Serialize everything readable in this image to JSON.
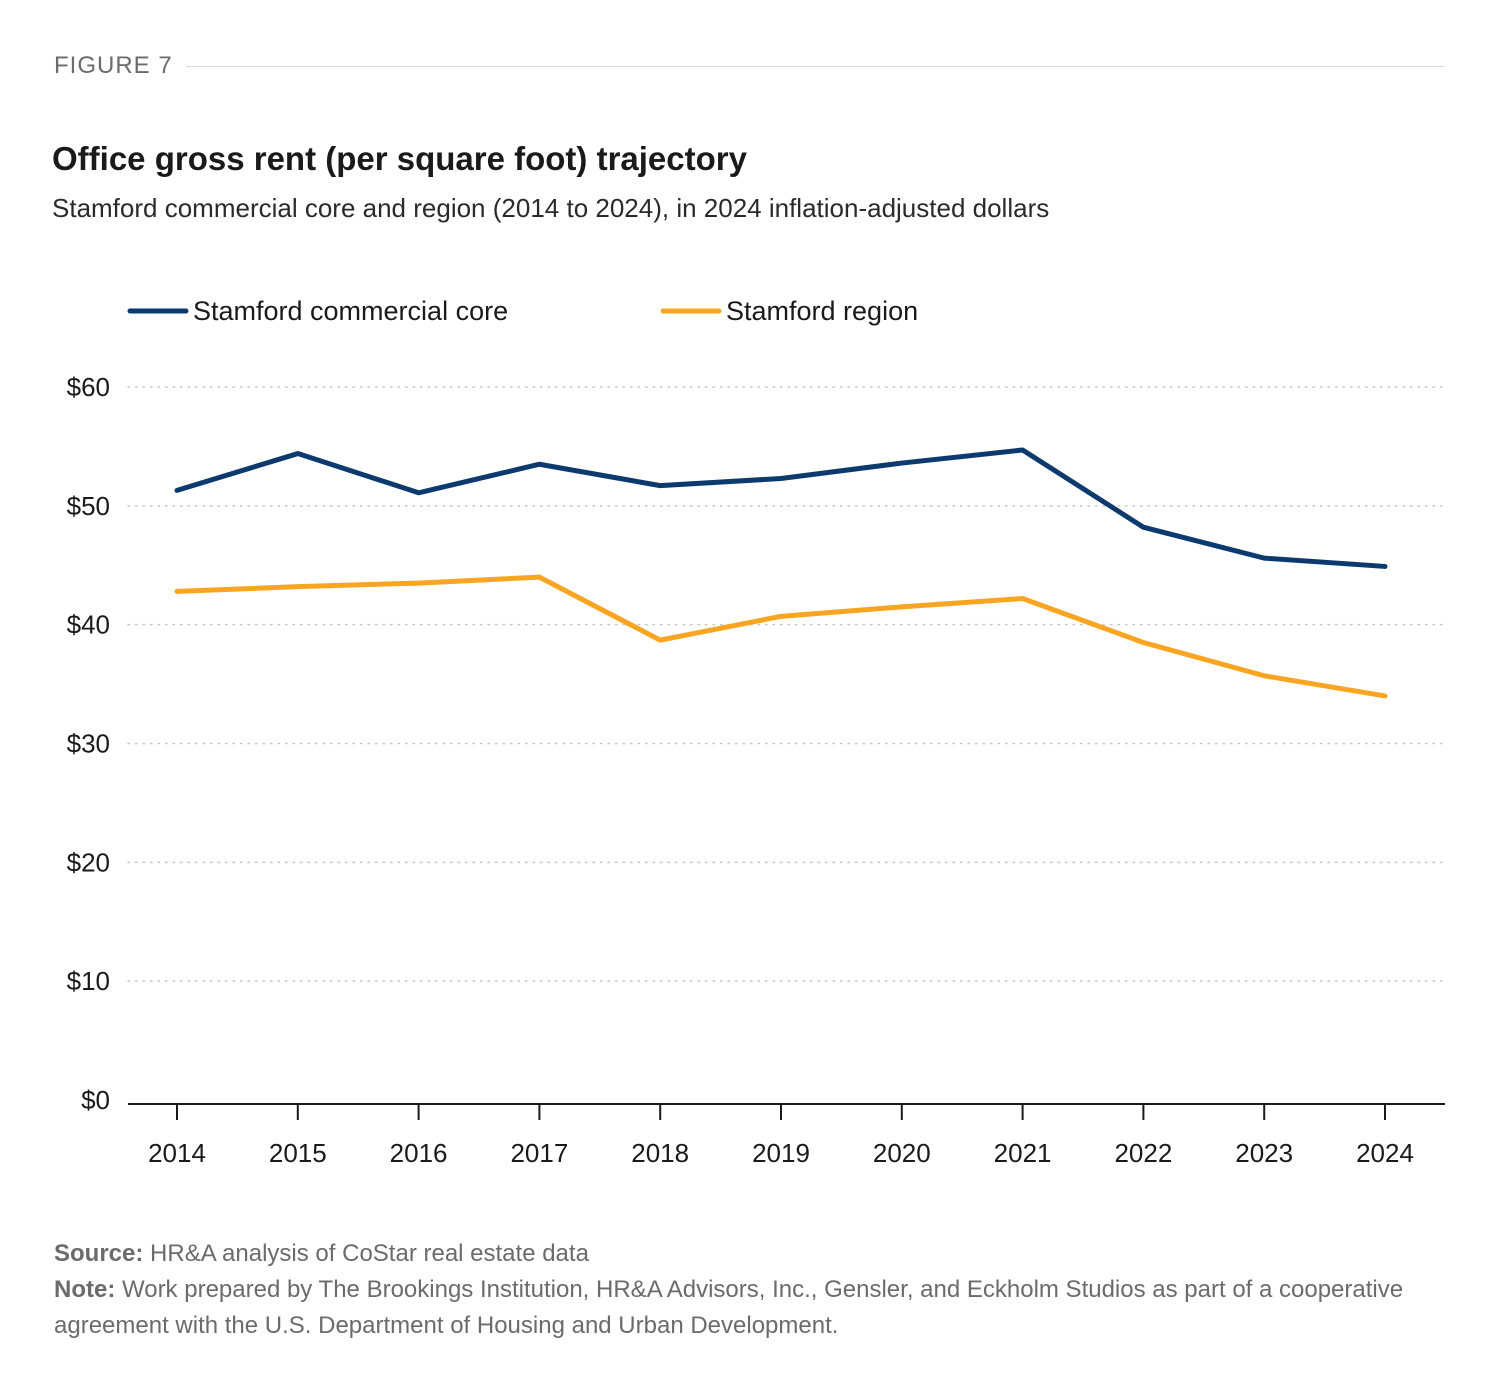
{
  "figure_label": "FIGURE 7",
  "chart_data": {
    "type": "line",
    "title": "Office gross rent (per square foot) trajectory",
    "subtitle": "Stamford commercial core and region (2014 to 2024), in 2024 inflation-adjusted dollars",
    "categories": [
      "2014",
      "2015",
      "2016",
      "2017",
      "2018",
      "2019",
      "2020",
      "2021",
      "2022",
      "2023",
      "2024"
    ],
    "series": [
      {
        "name": "Stamford commercial core",
        "color": "#0d3a6e",
        "values": [
          51.3,
          54.4,
          51.1,
          53.5,
          51.7,
          52.3,
          53.6,
          54.7,
          48.2,
          45.6,
          44.9
        ]
      },
      {
        "name": "Stamford region",
        "color": "#f9a521",
        "values": [
          42.8,
          43.2,
          43.5,
          44.0,
          38.7,
          40.7,
          41.5,
          42.2,
          38.5,
          35.7,
          34.0
        ]
      }
    ],
    "yticks": [
      "$0",
      "$10",
      "$20",
      "$30",
      "$40",
      "$50",
      "$60"
    ],
    "ylim": [
      0,
      60
    ],
    "grid": true,
    "legend_position": "top-left"
  },
  "footer": {
    "source_label": "Source:",
    "source_text": " HR&A analysis of CoStar real estate data",
    "note_label": "Note:",
    "note_text": " Work prepared by The Brookings Institution, HR&A Advisors, Inc., Gensler, and Eckholm Studios as part of a cooperative agreement with the U.S. Department of Housing and Urban Development."
  }
}
